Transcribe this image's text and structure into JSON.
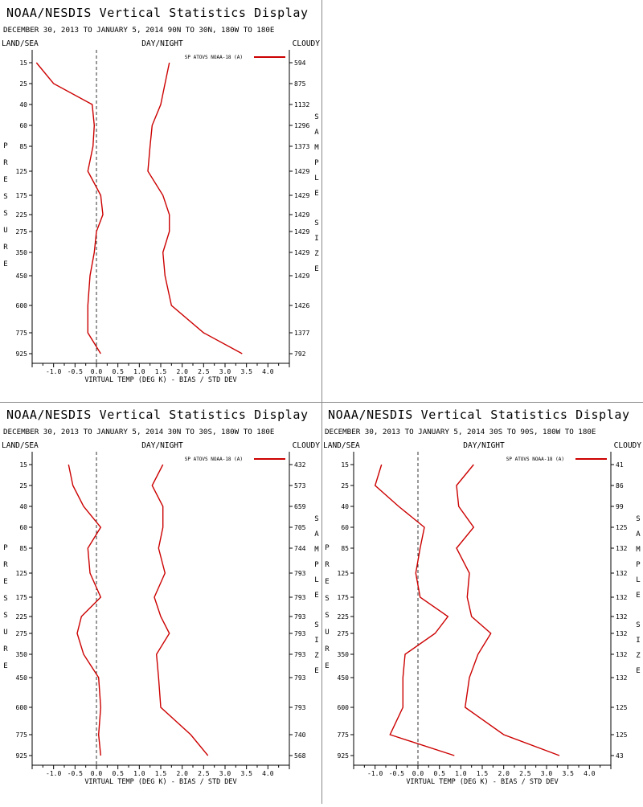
{
  "panels_common": {
    "title": "NOAA/NESDIS Vertical Statistics Display",
    "left_label": "LAND/SEA",
    "center_label": "DAY/NIGHT",
    "right_label": "CLOUDY",
    "xlabel": "VIRTUAL TEMP (DEG K) - BIAS / STD DEV",
    "ylabel_vertical": "PRESSURE",
    "right_vertical": "SAMPLE SIZE",
    "legend": "SP ATOVS NOAA-18 (A)"
  },
  "colors": {
    "series": "#cc0000",
    "zero_line": "#333333",
    "axis": "#000000"
  },
  "chart_data": [
    {
      "type": "line",
      "subtitle": "DECEMBER 30, 2013 TO JANUARY 5, 2014  90N TO 30N, 180W TO 180E",
      "pressure_levels": [
        15,
        25,
        40,
        60,
        85,
        125,
        175,
        225,
        275,
        350,
        450,
        600,
        775,
        925
      ],
      "sample_size": [
        594,
        875,
        1132,
        1296,
        1373,
        1429,
        1429,
        1429,
        1429,
        1429,
        1429,
        1426,
        1377,
        792
      ],
      "xlim": [
        -1.5,
        4.5
      ],
      "xticks": [
        "-1.0",
        "-0.5",
        "0.0",
        "0.5",
        "1.0",
        "1.5",
        "2.0",
        "2.5",
        "3.0",
        "3.5",
        "4.0"
      ],
      "series": [
        {
          "values": [
            -1.4,
            -1.0,
            -0.1,
            -0.05,
            -0.08,
            -0.2,
            0.1,
            0.15,
            0.0,
            -0.05,
            -0.15,
            -0.2,
            -0.2,
            0.1
          ]
        },
        {
          "values": [
            1.7,
            1.6,
            1.5,
            1.3,
            1.25,
            1.2,
            1.55,
            1.7,
            1.7,
            1.55,
            1.6,
            1.75,
            2.5,
            3.4
          ]
        }
      ]
    },
    {
      "type": "line",
      "subtitle": "DECEMBER 30, 2013 TO JANUARY 5, 2014  30N TO 30S, 180W TO 180E",
      "pressure_levels": [
        15,
        25,
        40,
        60,
        85,
        125,
        175,
        225,
        275,
        350,
        450,
        600,
        775,
        925
      ],
      "sample_size": [
        432,
        573,
        659,
        705,
        744,
        793,
        793,
        793,
        793,
        793,
        793,
        793,
        740,
        568
      ],
      "xlim": [
        -1.5,
        4.5
      ],
      "xticks": [
        "-1.0",
        "-0.5",
        "0.0",
        "0.5",
        "1.0",
        "1.5",
        "2.0",
        "2.5",
        "3.0",
        "3.5",
        "4.0"
      ],
      "series": [
        {
          "values": [
            -0.65,
            -0.55,
            -0.3,
            0.1,
            -0.2,
            -0.15,
            0.1,
            -0.35,
            -0.45,
            -0.3,
            0.05,
            0.1,
            0.05,
            0.1
          ]
        },
        {
          "values": [
            1.55,
            1.3,
            1.55,
            1.55,
            1.45,
            1.6,
            1.35,
            1.5,
            1.7,
            1.4,
            1.45,
            1.5,
            2.2,
            2.6
          ]
        }
      ]
    },
    {
      "type": "line",
      "subtitle": "DECEMBER 30, 2013 TO JANUARY 5, 2014  30S TO 90S, 180W TO 180E",
      "pressure_levels": [
        15,
        25,
        40,
        60,
        85,
        125,
        175,
        225,
        275,
        350,
        450,
        600,
        775,
        925
      ],
      "sample_size": [
        41,
        86,
        99,
        125,
        132,
        132,
        132,
        132,
        132,
        132,
        132,
        125,
        125,
        43
      ],
      "xlim": [
        -1.5,
        4.5
      ],
      "xticks": [
        "-1.0",
        "-0.5",
        "0.0",
        "0.5",
        "1.0",
        "1.5",
        "2.0",
        "2.5",
        "3.0",
        "3.5",
        "4.0"
      ],
      "series": [
        {
          "values": [
            -0.85,
            -1.0,
            -0.45,
            0.15,
            0.05,
            -0.05,
            0.05,
            0.7,
            0.4,
            -0.3,
            -0.35,
            -0.35,
            -0.65,
            0.85
          ]
        },
        {
          "values": [
            1.3,
            0.9,
            0.95,
            1.3,
            0.9,
            1.2,
            1.15,
            1.25,
            1.7,
            1.4,
            1.2,
            1.1,
            2.0,
            3.3
          ]
        }
      ]
    }
  ]
}
